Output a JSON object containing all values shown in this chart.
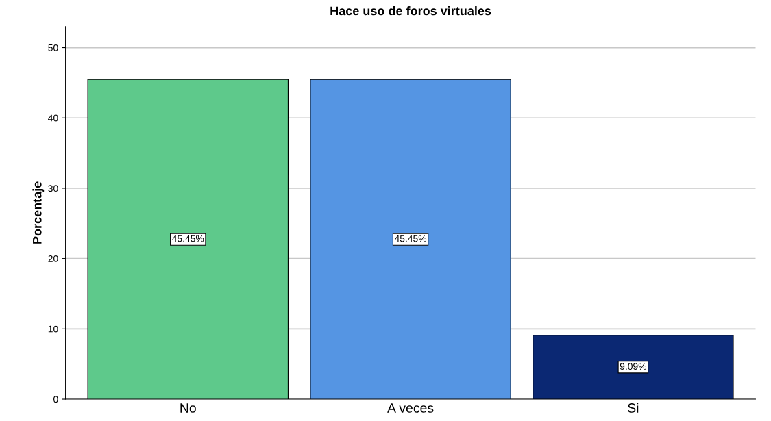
{
  "chart_data": {
    "type": "bar",
    "title": "Hace uso de foros virtuales",
    "ylabel": "Porcentaje",
    "categories": [
      "No",
      "A veces",
      "Si"
    ],
    "values": [
      45.45,
      45.45,
      9.09
    ],
    "colors": [
      "#5ec98b",
      "#5595e3",
      "#0b2873"
    ],
    "value_labels": [
      "45.45%",
      "45.45%",
      "9.09%"
    ],
    "ylim": [
      0,
      53
    ],
    "yticks": [
      0,
      10,
      20,
      30,
      40,
      50
    ],
    "grid": "y",
    "legend": false
  }
}
